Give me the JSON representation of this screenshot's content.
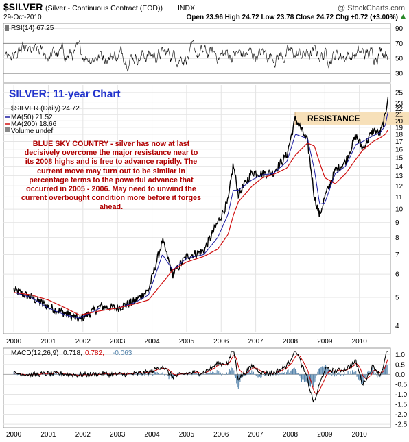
{
  "header": {
    "symbol": "$SILVER",
    "desc": "(Silver - Continuous Contract (EOD))",
    "exchange": "INDX",
    "date": "29-Oct-2010",
    "brand": "@ StockCharts.com",
    "quote": "Open 23.96  High 24.72  Low 23.78  Close 24.72  Chg +0.72 (+3.00%)",
    "quote_icon": "up-triangle-icon"
  },
  "colors": {
    "price": "#000000",
    "ma50": "#1a1aa0",
    "ma200": "#d01010",
    "macd": "#000000",
    "signal": "#cc0000",
    "hist": "#4f7fa8",
    "title": "#2233cc",
    "annotation": "#b00000",
    "resistance_fill": "#f7deb5"
  },
  "rsi": {
    "label": "RSI(14) 67.25",
    "ticks": [
      "90",
      "70",
      "50",
      "30"
    ],
    "levels": [
      70,
      30
    ]
  },
  "main": {
    "chart_title": "SILVER: 11-year Chart",
    "legend": {
      "price": "$SILVER (Daily) 24.72",
      "ma50": "MA(50) 21.52",
      "ma200": "MA(200) 18.66",
      "volume": "Volume undef"
    },
    "annotation": "BLUE SKY COUNTRY - silver has now at last decisively overcome the major resistance near to its 2008 highs and is free to advance rapidly. The current move may turn out to be similar in percentage terms to the powerful advance that occurred in 2005 - 2006. May need to unwind the current overbought condition more before it forges ahead.",
    "resistance_label": "RESISTANCE",
    "resistance_band": [
      19.4,
      21.4
    ],
    "y_ticks": [
      "25",
      "23",
      "22",
      "21",
      "20",
      "19",
      "18",
      "17",
      "16",
      "15",
      "14",
      "13",
      "12",
      "11",
      "10",
      "9",
      "8",
      "7",
      "6",
      "5",
      "4"
    ]
  },
  "macd": {
    "label": "MACD(12,26,9)",
    "v1": "0.718,",
    "v2": "0.782,",
    "v3": "-0.063",
    "ticks": [
      "1.0",
      "0.5",
      "0.0",
      "-0.5",
      "-1.0",
      "-1.5",
      "-2.0",
      "-2.5"
    ]
  },
  "x_labels": [
    "2000",
    "2001",
    "2002",
    "2003",
    "2004",
    "2005",
    "2006",
    "2007",
    "2008",
    "2009",
    "2010"
  ],
  "chart_data": {
    "type": "line",
    "title": "SILVER: 11-year Chart",
    "x": [
      2000.0,
      2000.5,
      2001.0,
      2001.5,
      2001.9,
      2002.5,
      2003.0,
      2003.5,
      2003.9,
      2004.3,
      2004.6,
      2005.0,
      2005.5,
      2005.9,
      2006.2,
      2006.35,
      2006.5,
      2006.9,
      2007.2,
      2007.5,
      2007.9,
      2008.15,
      2008.5,
      2008.7,
      2008.85,
      2009.0,
      2009.3,
      2009.6,
      2009.9,
      2010.1,
      2010.4,
      2010.6,
      2010.75,
      2010.83
    ],
    "series": [
      {
        "name": "$SILVER (Daily)",
        "values": [
          5.3,
          5.0,
          4.65,
          4.4,
          4.2,
          4.65,
          4.6,
          4.85,
          5.3,
          7.8,
          6.0,
          6.9,
          7.2,
          9.0,
          10.6,
          14.2,
          11.2,
          13.4,
          13.2,
          13.3,
          15.3,
          20.4,
          17.0,
          11.0,
          9.5,
          11.0,
          13.5,
          14.5,
          17.8,
          16.1,
          18.6,
          18.1,
          20.7,
          24.72
        ]
      },
      {
        "name": "MA(50)",
        "values": [
          5.2,
          5.0,
          4.6,
          4.35,
          4.25,
          4.6,
          4.6,
          4.8,
          5.1,
          7.0,
          6.2,
          6.8,
          7.0,
          8.0,
          9.6,
          11.6,
          11.6,
          12.6,
          13.1,
          13.2,
          14.5,
          18.0,
          17.4,
          13.6,
          10.4,
          10.5,
          13.2,
          14.0,
          16.6,
          17.0,
          17.8,
          18.2,
          19.3,
          21.52
        ]
      },
      {
        "name": "MA(200)",
        "values": [
          5.2,
          5.1,
          4.9,
          4.6,
          4.35,
          4.5,
          4.6,
          4.75,
          4.9,
          5.6,
          6.2,
          6.6,
          6.9,
          7.3,
          8.2,
          9.5,
          10.6,
          12.0,
          12.8,
          13.1,
          13.8,
          15.3,
          16.8,
          16.4,
          14.4,
          12.8,
          12.2,
          13.2,
          14.8,
          15.9,
          17.0,
          17.5,
          18.0,
          18.66
        ]
      }
    ],
    "xlabel": "",
    "ylabel": "",
    "ylim": [
      3.8,
      26.5
    ],
    "y_scale": "log",
    "grid": true,
    "legend": "top-left"
  }
}
